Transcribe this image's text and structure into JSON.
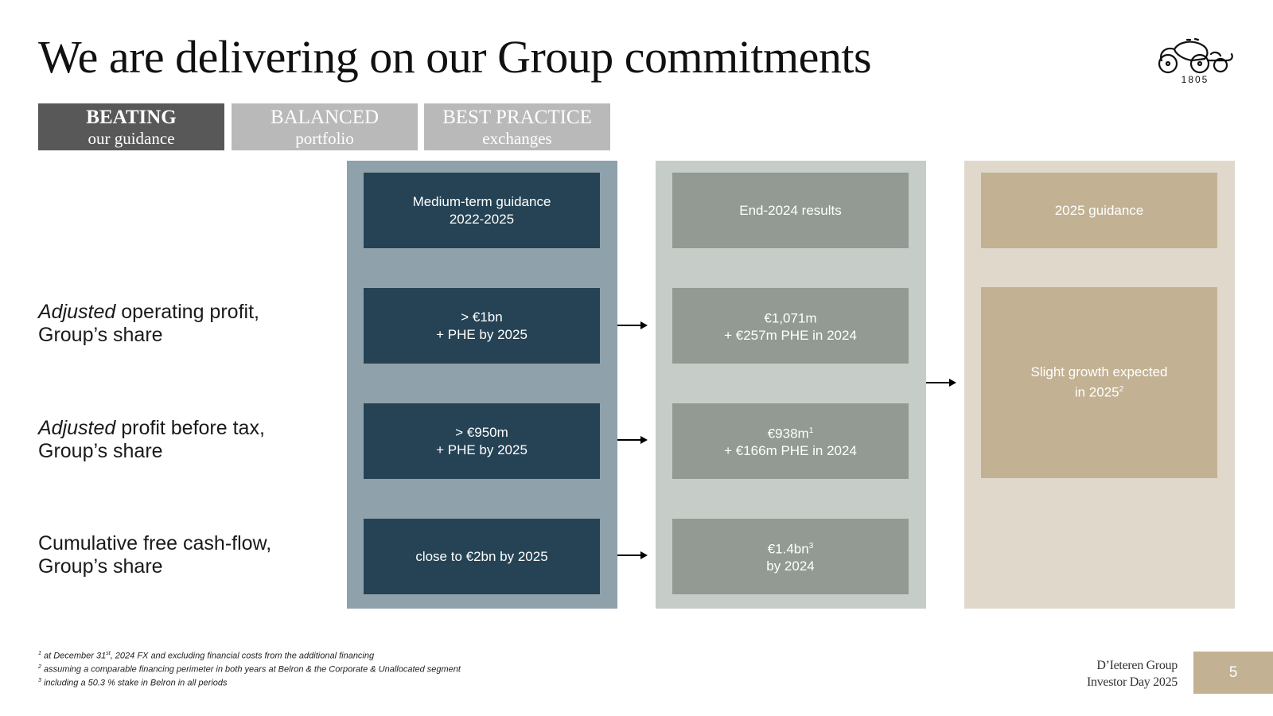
{
  "title": "We are delivering on our Group commitments",
  "logo": {
    "year": "1805",
    "icon": "carriage-logo-icon"
  },
  "tabs": [
    {
      "line1": "BEATING",
      "line2": "our guidance",
      "active": true
    },
    {
      "line1": "BALANCED",
      "line2": "portfolio",
      "active": false
    },
    {
      "line1": "BEST PRACTICE",
      "line2": "exchanges",
      "active": false
    }
  ],
  "columns": {
    "guidance_header": "Medium-term guidance\n2022-2025",
    "results_header": "End-2024 results",
    "outlook_header": "2025 guidance"
  },
  "rows": [
    {
      "label_italic": "Adjusted",
      "label_rest": " operating profit,",
      "label_line2": "Group’s share",
      "guidance": "> €1bn\n+ PHE by 2025",
      "result": "€1,071m",
      "result_sup": "",
      "result_line2": "+ €257m PHE in 2024"
    },
    {
      "label_italic": "Adjusted",
      "label_rest": " profit before tax,",
      "label_line2": "Group’s share",
      "guidance": "> €950m\n+ PHE by 2025",
      "result": "€938m",
      "result_sup": "1",
      "result_line2": "+ €166m PHE in 2024"
    },
    {
      "label_italic": "",
      "label_rest": "Cumulative free cash-flow,",
      "label_line2": "Group’s share",
      "guidance": "close to €2bn by 2025",
      "result": "€1.4bn",
      "result_sup": "3",
      "result_line2": "by 2024"
    }
  ],
  "outlook": {
    "text": "Slight growth expected",
    "line2": "in 2025",
    "sup": "2"
  },
  "footnotes": [
    {
      "num": "1",
      "pre": "at December 31",
      "sup": "st",
      "post": ", 2024 FX and excluding financial costs from the additional financing"
    },
    {
      "num": "2",
      "pre": "assuming a comparable financing perimeter in both years at Belron & the Corporate & Unallocated segment",
      "sup": "",
      "post": ""
    },
    {
      "num": "3",
      "pre": "including a 50.3 % stake in Belron in all periods",
      "sup": "",
      "post": ""
    }
  ],
  "brand": {
    "line1": "D’Ieteren Group",
    "line2": "Investor Day 2025"
  },
  "page_number": "5",
  "colors": {
    "dark_blue": "#254355",
    "grey": "#929a93",
    "tan": "#c2b193",
    "active_tab": "#585858",
    "inactive_tab": "#b9b9b9"
  }
}
